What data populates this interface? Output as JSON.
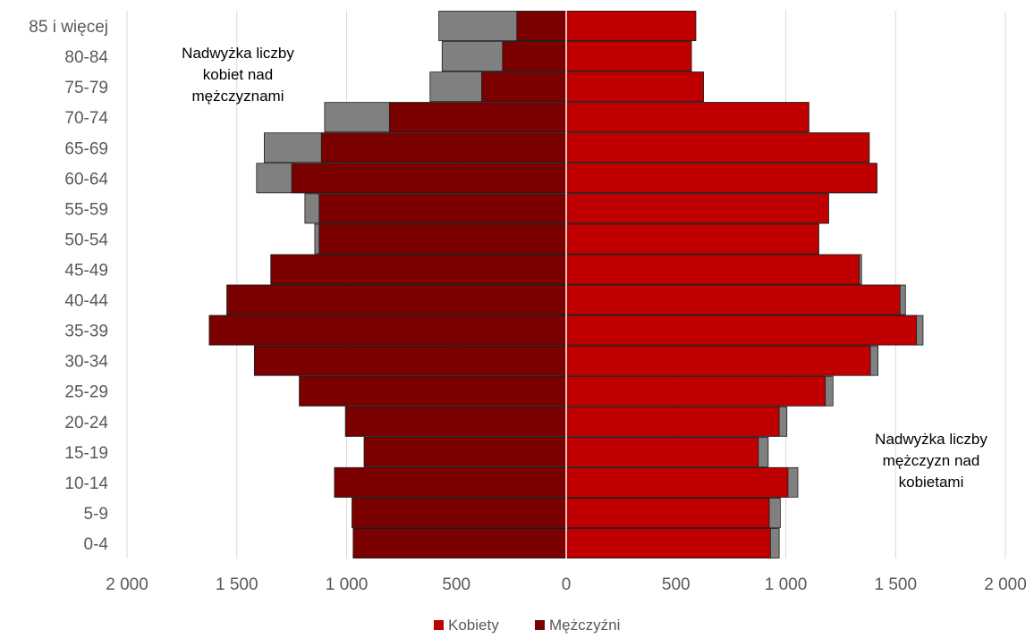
{
  "chart_data": {
    "type": "bar",
    "orientation": "horizontal",
    "categories": [
      "85 i więcej",
      "80-84",
      "75-79",
      "70-74",
      "65-69",
      "60-64",
      "55-59",
      "50-54",
      "45-49",
      "40-44",
      "35-39",
      "30-34",
      "25-29",
      "20-24",
      "15-19",
      "10-14",
      "5-9",
      "0-4"
    ],
    "series": [
      {
        "name": "Kobiety",
        "color": "#c00000",
        "values": [
          590,
          570,
          625,
          1105,
          1380,
          1415,
          1195,
          1150,
          1335,
          1520,
          1595,
          1385,
          1180,
          970,
          875,
          1010,
          925,
          930
        ]
      },
      {
        "name": "Mężczyźni",
        "color": "#7b0000",
        "values": [
          -225,
          -290,
          -385,
          -805,
          -1115,
          -1250,
          -1125,
          -1125,
          -1345,
          -1545,
          -1625,
          -1420,
          -1215,
          -1005,
          -920,
          -1055,
          -975,
          -970
        ]
      },
      {
        "name": "Nadwyżka kobiet",
        "color": "#808080",
        "values": [
          -580,
          -565,
          -620,
          -1100,
          -1375,
          -1410,
          -1190,
          -1145,
          -1345,
          -1545,
          -1625,
          -1420,
          -1215,
          -1005,
          -920,
          -1055,
          -975,
          -970
        ]
      },
      {
        "name": "Nadwyżka mężczyzn",
        "color": "#808080",
        "values": [
          590,
          570,
          625,
          1105,
          1380,
          1415,
          1195,
          1150,
          1345,
          1545,
          1625,
          1420,
          1215,
          1005,
          920,
          1055,
          975,
          970
        ]
      }
    ],
    "xlim": [
      -2000,
      2000
    ],
    "x_ticks": [
      {
        "value": -2000,
        "label": "2 000"
      },
      {
        "value": -1500,
        "label": "1 500"
      },
      {
        "value": -1000,
        "label": "1 000"
      },
      {
        "value": -500,
        "label": "500"
      },
      {
        "value": 0,
        "label": "0"
      },
      {
        "value": 500,
        "label": "500"
      },
      {
        "value": 1000,
        "label": "1 000"
      },
      {
        "value": 1500,
        "label": "1 500"
      },
      {
        "value": 2000,
        "label": "2 000"
      }
    ],
    "grid": "vertical",
    "legend": {
      "placement": "bottom",
      "entries": [
        "Kobiety",
        "Mężczyźni"
      ]
    },
    "annotations": [
      {
        "lines": [
          "Nadwyżka liczby",
          "kobiet nad",
          "mężczyznami"
        ],
        "position": "top-left"
      },
      {
        "lines": [
          "Nadwyżka liczby",
          "mężczyzn nad",
          "kobietami"
        ],
        "position": "bottom-right"
      }
    ]
  }
}
